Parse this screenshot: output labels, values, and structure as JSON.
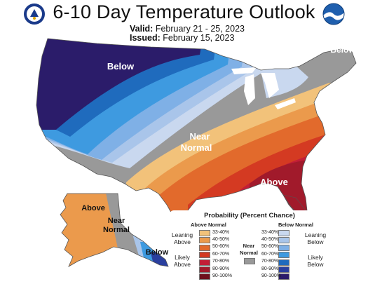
{
  "header": {
    "title": "6-10 Day Temperature Outlook",
    "valid_label": "Valid:",
    "valid_value": "February 21 - 25, 2023",
    "issued_label": "Issued:",
    "issued_value": "February 15, 2023"
  },
  "logos": {
    "left": "doc-seal-icon",
    "right": "noaa-logo-icon"
  },
  "map_labels": {
    "below_west": "Below",
    "below_ne": "Below",
    "near_normal_1": "Near",
    "near_normal_2": "Normal",
    "above_se": "Above",
    "ak_above": "Above",
    "ak_near_1": "Near",
    "ak_near_2": "Normal",
    "ak_below": "Below"
  },
  "legend": {
    "title": "Probability (Percent Chance)",
    "above_header": "Above Normal",
    "below_header": "Below Normal",
    "near_header_1": "Near",
    "near_header_2": "Normal",
    "leaning_above_1": "Leaning",
    "leaning_above_2": "Above",
    "likely_above_1": "Likely",
    "likely_above_2": "Above",
    "leaning_below_1": "Leaning",
    "leaning_below_2": "Below",
    "likely_below_1": "Likely",
    "likely_below_2": "Below",
    "above": [
      {
        "range": "33-40%",
        "color": "#f2c27a"
      },
      {
        "range": "40-50%",
        "color": "#eb9a4c"
      },
      {
        "range": "50-60%",
        "color": "#e26a2c"
      },
      {
        "range": "60-70%",
        "color": "#d43a22"
      },
      {
        "range": "70-80%",
        "color": "#c21e37"
      },
      {
        "range": "80-90%",
        "color": "#a11a2b"
      },
      {
        "range": "90-100%",
        "color": "#6e0f1c"
      }
    ],
    "below": [
      {
        "range": "33-40%",
        "color": "#c9d8ef"
      },
      {
        "range": "40-50%",
        "color": "#a9c5ea"
      },
      {
        "range": "50-60%",
        "color": "#7fb0e6"
      },
      {
        "range": "60-70%",
        "color": "#3e9ae0"
      },
      {
        "range": "70-80%",
        "color": "#1f6bbd"
      },
      {
        "range": "80-90%",
        "color": "#2a3f9e"
      },
      {
        "range": "90-100%",
        "color": "#2b1c6a"
      }
    ],
    "near_color": "#999999"
  }
}
